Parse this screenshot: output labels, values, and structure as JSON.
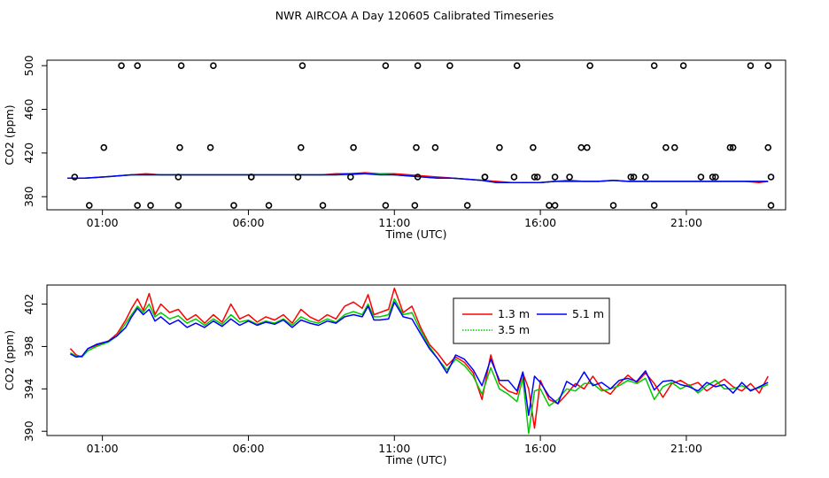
{
  "title": "NWR AIRCOA A  Day 120605  Calibrated Timeseries",
  "colors": {
    "s13": "#ff0000",
    "s35": "#00cc00",
    "s51": "#0000ff",
    "axis": "#000000",
    "background": "#ffffff"
  },
  "chart_data": [
    {
      "type": "scatter",
      "xlabel": "Time (UTC)",
      "ylabel": "CO2 (ppm)",
      "xlim": [
        -0.9,
        24.4
      ],
      "ylim": [
        368,
        505
      ],
      "xticks": [
        1,
        6,
        11,
        16,
        21
      ],
      "xtick_labels": [
        "01:00",
        "06:00",
        "11:00",
        "16:00",
        "21:00"
      ],
      "yticks": [
        380,
        420,
        460,
        500
      ],
      "ytick_labels": [
        "380",
        "420",
        "460",
        "500"
      ],
      "points_x": [
        0.55,
        1.65,
        1.05,
        0.05,
        3.6,
        2.65,
        3.65,
        4.7,
        6.1,
        7.8,
        7.85,
        9.6,
        10.7,
        11.8,
        11.75,
        11.8,
        12.9,
        14.1,
        14.6,
        15.2,
        15.75,
        15.8,
        16.5,
        17.0,
        17.6,
        17.7,
        19.2,
        19.9,
        20.3,
        20.9,
        21.5,
        22.0,
        22.6,
        23.2,
        23.8,
        23.8,
        23.9,
        23.9,
        3.7,
        2.2,
        2.2,
        3.6,
        4.8,
        5.5,
        6.1,
        6.7,
        7.7,
        8.55,
        9.5,
        10.7,
        11.7,
        12.4,
        13.5,
        14.1,
        15.1,
        15.9,
        16.3,
        16.5,
        17.4,
        18.5,
        19.1,
        19.9,
        19.6,
        20.6,
        21.9,
        22.5
      ],
      "points_y": [
        372,
        500,
        425,
        398,
        372,
        372,
        425,
        425,
        398,
        425,
        500,
        425,
        372,
        500,
        425,
        398,
        500,
        398,
        425,
        500,
        425,
        398,
        372,
        398,
        425,
        500,
        398,
        500,
        425,
        500,
        398,
        398,
        425,
        500,
        500,
        425,
        398,
        372,
        500,
        500,
        372,
        398,
        500,
        372,
        398,
        372,
        398,
        372,
        398,
        500,
        372,
        425,
        372,
        398,
        398,
        398,
        372,
        398,
        425,
        372,
        398,
        372,
        398,
        425,
        398,
        425
      ],
      "series": [
        {
          "name": "1.3 m",
          "color": "#ff0000",
          "x": [
            -0.2,
            0.4,
            1.0,
            1.5,
            2.0,
            2.5,
            3.0,
            3.5,
            4.0,
            4.5,
            5.0,
            5.5,
            6.0,
            6.5,
            7.0,
            7.5,
            8.0,
            8.5,
            9.0,
            9.5,
            10.0,
            10.5,
            11.0,
            11.5,
            12.0,
            12.5,
            13.0,
            13.5,
            14.0,
            14.5,
            15.0,
            15.5,
            16.0,
            16.5,
            17.0,
            17.5,
            18.0,
            18.5,
            19.0,
            19.5,
            20.0,
            20.5,
            21.0,
            21.5,
            22.0,
            22.5,
            23.0,
            23.5,
            23.8
          ],
          "values": [
            397,
            397,
            398,
            399,
            400,
            401,
            400,
            400,
            400,
            400,
            400,
            400,
            400,
            400,
            400,
            400,
            400,
            400,
            401,
            401,
            402,
            401,
            401,
            400,
            399,
            398,
            397,
            396,
            395,
            394,
            393,
            393,
            393,
            394,
            395,
            394,
            394,
            395,
            394,
            394,
            394,
            394,
            394,
            394,
            394,
            394,
            394,
            393,
            394
          ]
        },
        {
          "name": "3.5 m",
          "color": "#00cc00",
          "x": [
            -0.2,
            0.4,
            1.0,
            1.5,
            2.0,
            2.5,
            3.0,
            3.5,
            4.0,
            4.5,
            5.0,
            5.5,
            6.0,
            6.5,
            7.0,
            7.5,
            8.0,
            8.5,
            9.0,
            9.5,
            10.0,
            10.5,
            11.0,
            11.5,
            12.0,
            12.5,
            13.0,
            13.5,
            14.0,
            14.5,
            15.0,
            15.5,
            16.0,
            16.5,
            17.0,
            17.5,
            18.0,
            18.5,
            19.0,
            19.5,
            20.0,
            20.5,
            21.0,
            21.5,
            22.0,
            22.5,
            23.0,
            23.5,
            23.8
          ],
          "values": [
            397,
            397,
            398,
            399,
            400,
            400,
            400,
            400,
            400,
            400,
            400,
            400,
            400,
            400,
            400,
            400,
            400,
            400,
            400,
            400,
            401,
            401,
            400,
            399,
            398,
            397,
            397,
            396,
            395,
            393,
            393,
            393,
            393,
            394,
            394,
            394,
            394,
            395,
            394,
            394,
            394,
            394,
            394,
            394,
            394,
            394,
            394,
            394,
            394
          ]
        },
        {
          "name": "5.1 m",
          "color": "#0000ff",
          "x": [
            -0.2,
            0.4,
            1.0,
            1.5,
            2.0,
            2.5,
            3.0,
            3.5,
            4.0,
            4.5,
            5.0,
            5.5,
            6.0,
            6.5,
            7.0,
            7.5,
            8.0,
            8.5,
            9.0,
            9.5,
            10.0,
            10.5,
            11.0,
            11.5,
            12.0,
            12.5,
            13.0,
            13.5,
            14.0,
            14.5,
            15.0,
            15.5,
            16.0,
            16.5,
            17.0,
            17.5,
            18.0,
            18.5,
            19.0,
            19.5,
            20.0,
            20.5,
            21.0,
            21.5,
            22.0,
            22.5,
            23.0,
            23.5,
            23.8
          ],
          "values": [
            397,
            397,
            398,
            399,
            400,
            400,
            400,
            400,
            400,
            400,
            400,
            400,
            400,
            400,
            400,
            400,
            400,
            400,
            400,
            401,
            401,
            400,
            400,
            399,
            398,
            397,
            397,
            396,
            395,
            393,
            393,
            393,
            393,
            394,
            394,
            394,
            394,
            395,
            394,
            394,
            394,
            394,
            394,
            394,
            394,
            394,
            394,
            394,
            394
          ]
        }
      ]
    },
    {
      "type": "line",
      "xlabel": "Time (UTC)",
      "ylabel": "CO2 (ppm)",
      "xlim": [
        -0.9,
        24.4
      ],
      "ylim": [
        389.6,
        403.8
      ],
      "xticks": [
        1,
        6,
        11,
        16,
        21
      ],
      "xtick_labels": [
        "01:00",
        "06:00",
        "11:00",
        "16:00",
        "21:00"
      ],
      "yticks": [
        390,
        394,
        398,
        402
      ],
      "ytick_labels": [
        "390",
        "394",
        "398",
        "402"
      ],
      "legend": {
        "position": "top-center",
        "entries": [
          "1.3 m",
          "3.5 m",
          "5.1 m"
        ]
      },
      "series": [
        {
          "name": "1.3 m",
          "color": "#ff0000",
          "x": [
            -0.1,
            0.1,
            0.3,
            0.5,
            0.8,
            1.2,
            1.5,
            1.8,
            2.0,
            2.2,
            2.4,
            2.6,
            2.8,
            3.0,
            3.3,
            3.6,
            3.9,
            4.2,
            4.5,
            4.8,
            5.1,
            5.4,
            5.7,
            6.0,
            6.3,
            6.6,
            6.9,
            7.2,
            7.5,
            7.8,
            8.1,
            8.4,
            8.7,
            9.0,
            9.3,
            9.6,
            9.9,
            10.1,
            10.3,
            10.5,
            10.8,
            11.0,
            11.3,
            11.6,
            11.9,
            12.2,
            12.5,
            12.8,
            13.1,
            13.4,
            13.7,
            14.0,
            14.3,
            14.6,
            14.9,
            15.2,
            15.4,
            15.6,
            15.8,
            16.0,
            16.3,
            16.6,
            16.9,
            17.2,
            17.5,
            17.8,
            18.1,
            18.4,
            18.7,
            19.0,
            19.3,
            19.6,
            19.9,
            20.2,
            20.5,
            20.8,
            21.1,
            21.4,
            21.7,
            22.0,
            22.3,
            22.6,
            22.9,
            23.2,
            23.5,
            23.8
          ],
          "values": [
            397.8,
            397.2,
            397.0,
            397.8,
            398.1,
            398.5,
            399.2,
            400.5,
            401.6,
            402.5,
            401.4,
            403.0,
            401.0,
            402.0,
            401.2,
            401.5,
            400.5,
            401.0,
            400.2,
            401.0,
            400.3,
            402.0,
            400.6,
            401.0,
            400.3,
            400.8,
            400.5,
            401.0,
            400.2,
            401.5,
            400.8,
            400.4,
            401.0,
            400.6,
            401.8,
            402.2,
            401.6,
            402.9,
            401.0,
            401.2,
            401.5,
            403.5,
            401.2,
            401.8,
            399.8,
            398.2,
            397.3,
            396.2,
            397.0,
            396.5,
            395.5,
            393.0,
            397.2,
            394.5,
            393.8,
            393.5,
            395.5,
            394.0,
            390.3,
            394.8,
            393.0,
            392.6,
            393.5,
            394.5,
            394.0,
            395.2,
            394.0,
            393.5,
            394.5,
            395.3,
            394.6,
            395.5,
            394.5,
            393.2,
            394.5,
            394.8,
            394.3,
            394.6,
            393.8,
            394.4,
            394.9,
            394.2,
            393.8,
            394.5,
            393.6,
            395.2
          ]
        },
        {
          "name": "3.5 m",
          "color": "#00cc00",
          "x": [
            -0.1,
            0.1,
            0.3,
            0.5,
            0.8,
            1.2,
            1.5,
            1.8,
            2.0,
            2.2,
            2.4,
            2.6,
            2.8,
            3.0,
            3.3,
            3.6,
            3.9,
            4.2,
            4.5,
            4.8,
            5.1,
            5.4,
            5.7,
            6.0,
            6.3,
            6.6,
            6.9,
            7.2,
            7.5,
            7.8,
            8.1,
            8.4,
            8.7,
            9.0,
            9.3,
            9.6,
            9.9,
            10.1,
            10.3,
            10.5,
            10.8,
            11.0,
            11.3,
            11.6,
            11.9,
            12.2,
            12.5,
            12.8,
            13.1,
            13.4,
            13.7,
            14.0,
            14.3,
            14.6,
            14.9,
            15.2,
            15.4,
            15.6,
            15.8,
            16.0,
            16.3,
            16.6,
            16.9,
            17.2,
            17.5,
            17.8,
            18.1,
            18.4,
            18.7,
            19.0,
            19.3,
            19.6,
            19.9,
            20.2,
            20.5,
            20.8,
            21.1,
            21.4,
            21.7,
            22.0,
            22.3,
            22.6,
            22.9,
            23.2,
            23.5,
            23.8
          ],
          "values": [
            397.4,
            397.1,
            397.0,
            397.6,
            398.0,
            398.4,
            399.0,
            400.2,
            401.0,
            401.8,
            401.2,
            402.0,
            400.8,
            401.2,
            400.6,
            400.9,
            400.2,
            400.6,
            400.0,
            400.6,
            400.1,
            401.0,
            400.3,
            400.5,
            400.1,
            400.4,
            400.2,
            400.6,
            400.0,
            400.8,
            400.4,
            400.2,
            400.6,
            400.3,
            401.0,
            401.3,
            401.0,
            402.0,
            400.8,
            400.8,
            401.0,
            402.5,
            401.0,
            401.2,
            399.5,
            398.0,
            396.8,
            395.8,
            396.8,
            396.2,
            395.2,
            393.5,
            396.0,
            394.0,
            393.5,
            392.8,
            395.0,
            389.8,
            393.8,
            394.0,
            392.4,
            393.0,
            394.0,
            393.8,
            394.5,
            394.5,
            393.8,
            394.0,
            394.3,
            394.8,
            394.5,
            395.0,
            393.0,
            394.2,
            394.6,
            394.0,
            394.4,
            393.6,
            394.3,
            394.8,
            394.0,
            394.0,
            394.3,
            393.9,
            394.1,
            394.4
          ]
        },
        {
          "name": "5.1 m",
          "color": "#0000ff",
          "x": [
            -0.1,
            0.1,
            0.3,
            0.5,
            0.8,
            1.2,
            1.5,
            1.8,
            2.0,
            2.2,
            2.4,
            2.6,
            2.8,
            3.0,
            3.3,
            3.6,
            3.9,
            4.2,
            4.5,
            4.8,
            5.1,
            5.4,
            5.7,
            6.0,
            6.3,
            6.6,
            6.9,
            7.2,
            7.5,
            7.8,
            8.1,
            8.4,
            8.7,
            9.0,
            9.3,
            9.6,
            9.9,
            10.1,
            10.3,
            10.5,
            10.8,
            11.0,
            11.3,
            11.6,
            11.9,
            12.2,
            12.5,
            12.8,
            13.1,
            13.4,
            13.7,
            14.0,
            14.3,
            14.6,
            14.9,
            15.2,
            15.4,
            15.6,
            15.8,
            16.0,
            16.3,
            16.6,
            16.9,
            17.2,
            17.5,
            17.8,
            18.1,
            18.4,
            18.7,
            19.0,
            19.3,
            19.6,
            19.9,
            20.2,
            20.5,
            20.8,
            21.1,
            21.4,
            21.7,
            22.0,
            22.3,
            22.6,
            22.9,
            23.2,
            23.5,
            23.8
          ],
          "values": [
            397.3,
            397.0,
            397.1,
            397.8,
            398.2,
            398.5,
            399.0,
            399.8,
            400.8,
            401.6,
            401.0,
            401.5,
            400.4,
            400.8,
            400.1,
            400.5,
            399.8,
            400.2,
            399.8,
            400.4,
            399.9,
            400.6,
            400.0,
            400.4,
            400.0,
            400.3,
            400.1,
            400.5,
            399.8,
            400.5,
            400.2,
            400.0,
            400.4,
            400.2,
            400.8,
            401.0,
            400.8,
            401.8,
            400.5,
            400.5,
            400.6,
            402.2,
            400.8,
            400.6,
            399.2,
            397.8,
            396.8,
            395.5,
            397.2,
            396.8,
            395.8,
            394.3,
            396.8,
            394.8,
            394.8,
            393.8,
            395.6,
            391.5,
            395.2,
            394.6,
            393.3,
            392.6,
            394.7,
            394.2,
            395.6,
            394.3,
            394.6,
            394.0,
            394.8,
            395.0,
            394.7,
            395.7,
            393.9,
            394.7,
            394.8,
            394.4,
            394.2,
            393.8,
            394.6,
            394.2,
            394.4,
            393.6,
            394.6,
            393.8,
            394.2,
            394.6
          ]
        }
      ]
    }
  ]
}
